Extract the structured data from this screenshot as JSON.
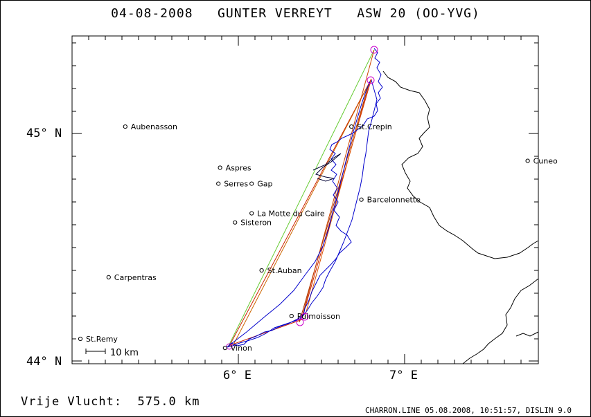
{
  "header": {
    "date": "04-08-2008",
    "pilot": "GUNTER VERREYT",
    "glider": "ASW 20 (OO-YVG)"
  },
  "axes": {
    "lat_top": "45° N",
    "lat_bottom": "44° N",
    "lon_left": "6° E",
    "lon_right": "7° E"
  },
  "scale_label": "10 km",
  "footer": {
    "distance_label": "Vrije Vlucht:",
    "distance_value": "575.0 km",
    "credits": "CHARRON.LINE 05.08.2008, 10:51:57, DISLIN 9.0"
  },
  "places": [
    {
      "name": "Aubenasson",
      "lon": 5.32,
      "lat": 45.03
    },
    {
      "name": "Aspres",
      "lon": 5.89,
      "lat": 44.85
    },
    {
      "name": "Serres",
      "lon": 5.88,
      "lat": 44.78
    },
    {
      "name": "Gap",
      "lon": 6.08,
      "lat": 44.78
    },
    {
      "name": "La Motte du Caire",
      "lon": 6.08,
      "lat": 44.65
    },
    {
      "name": "Sisteron",
      "lon": 5.98,
      "lat": 44.61
    },
    {
      "name": "St.Crepin",
      "lon": 6.68,
      "lat": 45.03
    },
    {
      "name": "Barcelonnette",
      "lon": 6.74,
      "lat": 44.71
    },
    {
      "name": "Cuneo",
      "lon": 7.74,
      "lat": 44.88
    },
    {
      "name": "Carpentras",
      "lon": 5.22,
      "lat": 44.37
    },
    {
      "name": "St.Auban",
      "lon": 6.14,
      "lat": 44.4
    },
    {
      "name": "Puimoisson",
      "lon": 6.32,
      "lat": 44.2
    },
    {
      "name": "St.Remy",
      "lon": 5.05,
      "lat": 44.1
    },
    {
      "name": "Vinon",
      "lon": 5.92,
      "lat": 44.06
    }
  ],
  "colors": {
    "track": "#0000cc",
    "task_lines": "#cc2200",
    "task_light": "#66cc33",
    "turnpoints": "#cc00cc",
    "border": "#000000"
  }
}
